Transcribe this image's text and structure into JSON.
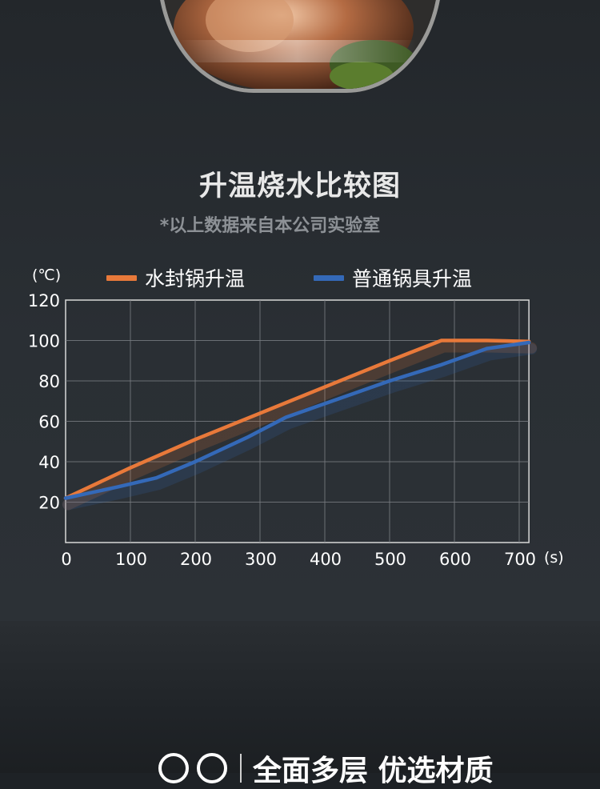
{
  "title": "升温烧水比较图",
  "subtitle": "*以上数据来自本公司实验室",
  "chart_data": {
    "type": "line",
    "ylabel": "(℃)",
    "xlabel": "(s)",
    "xlim": [
      0,
      715
    ],
    "ylim": [
      0,
      120
    ],
    "x_ticks": [
      0,
      100,
      200,
      300,
      400,
      500,
      600,
      700
    ],
    "y_ticks": [
      20,
      40,
      60,
      80,
      100,
      120
    ],
    "grid": true,
    "legend": "top",
    "series": [
      {
        "name": "水封锅升温",
        "color": "#e8793a",
        "points": [
          [
            0,
            22
          ],
          [
            100,
            37
          ],
          [
            200,
            51
          ],
          [
            300,
            64
          ],
          [
            400,
            77
          ],
          [
            500,
            90
          ],
          [
            580,
            100
          ],
          [
            650,
            100
          ],
          [
            715,
            99.5
          ]
        ]
      },
      {
        "name": "普通锅具升温",
        "color": "#3469b8",
        "points": [
          [
            0,
            22
          ],
          [
            80,
            27.5
          ],
          [
            140,
            32
          ],
          [
            200,
            40
          ],
          [
            280,
            52
          ],
          [
            340,
            62
          ],
          [
            420,
            71
          ],
          [
            500,
            80
          ],
          [
            580,
            88
          ],
          [
            650,
            96
          ],
          [
            715,
            99
          ]
        ]
      }
    ]
  },
  "features": {
    "heading": "全面多层 优选材质"
  }
}
